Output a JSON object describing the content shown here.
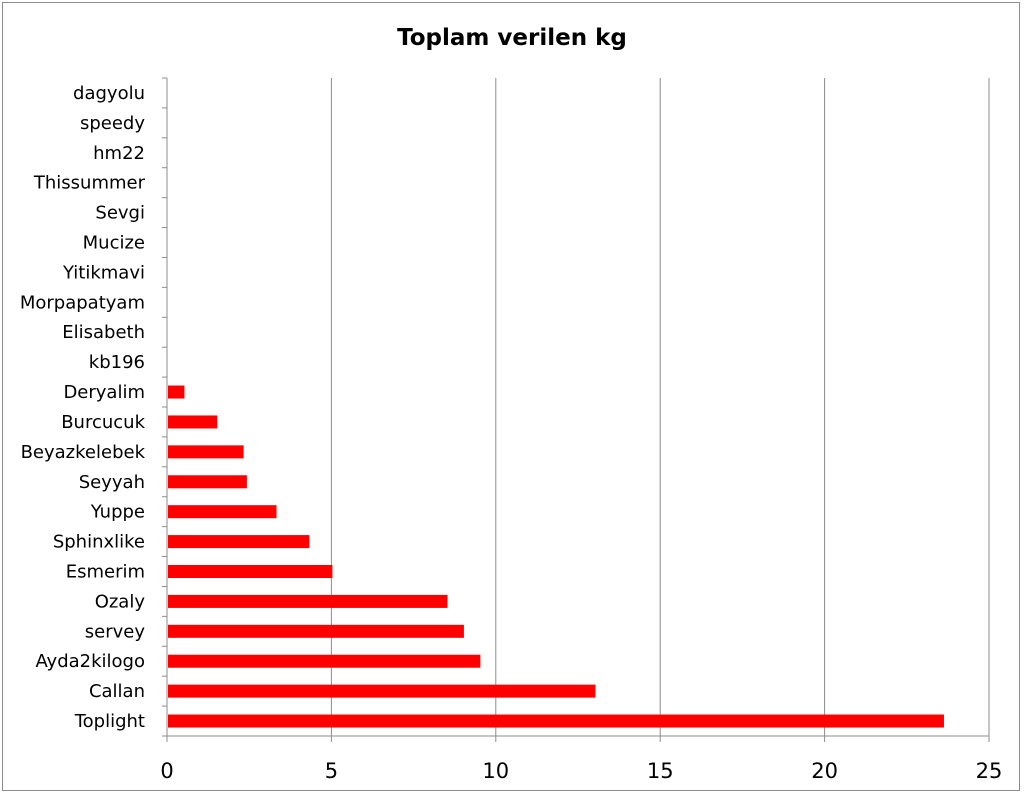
{
  "chart_data": {
    "type": "bar",
    "orientation": "horizontal",
    "title": "Toplam verilen kg",
    "xlabel": "",
    "ylabel": "",
    "xlim": [
      0,
      25
    ],
    "xticks": [
      0,
      5,
      10,
      15,
      20,
      25
    ],
    "grid": true,
    "legend": "none",
    "bar_color": "#ff0000",
    "categories": [
      "dagyolu",
      "speedy",
      "hm22",
      "Thissummer",
      "Sevgi",
      "Mucize",
      "Yitikmavi",
      "Morpapatyam",
      "Elisabeth",
      "kb196",
      "Deryalim",
      "Burcucuk",
      "Beyazkelebek",
      "Seyyah",
      "Yuppe",
      "Sphinxlike",
      "Esmerim",
      "Ozaly",
      "servey",
      "Ayda2kilogo",
      "Callan",
      "Toplight"
    ],
    "values": [
      0,
      0,
      0,
      0,
      0,
      0,
      0,
      0,
      0,
      0,
      0.5,
      1.5,
      2.3,
      2.4,
      3.3,
      4.3,
      5.0,
      8.5,
      9.0,
      9.5,
      13.0,
      23.6
    ]
  }
}
